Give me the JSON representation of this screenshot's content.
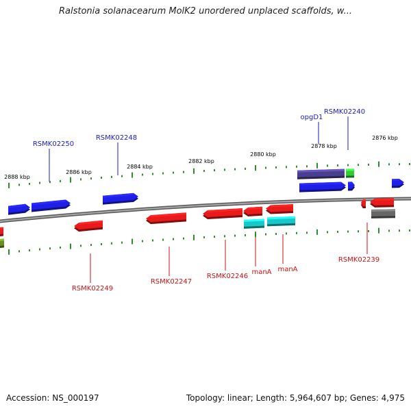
{
  "title": "Ralstonia solanacearum MolK2 unordered unplaced scaffolds, w...",
  "footer": {
    "accession": "Accession: NS_000197",
    "topology": "Topology: linear; Length: 5,964,607 bp; Genes: 4,975"
  },
  "scale_labels": [
    "2888 kbp",
    "2886 kbp",
    "2884 kbp",
    "2882 kbp",
    "2880 kbp",
    "2878 kbp",
    "2876 kbp"
  ],
  "top_gene_labels": [
    "RSMK02250",
    "RSMK02248",
    "opgD1",
    "RSMK02240"
  ],
  "bottom_gene_labels": [
    "RSMK02249",
    "RSMK02247",
    "RSMK02246",
    "manA",
    "manA",
    "RSMK02239"
  ],
  "colors": {
    "top_label": "#1a1acc",
    "bottom_label": "#cc1111",
    "forward_gene": "#1f1fe8",
    "reverse_gene": "#e81a1a",
    "backbone": "#888888",
    "ticks": "#2e8b2e",
    "teal_gene": "#18c8c8",
    "purple_gene": "#4a3f8f",
    "green_gene": "#33cc33",
    "gray_gene": "#666666",
    "olive_gene": "#6b8e23"
  }
}
